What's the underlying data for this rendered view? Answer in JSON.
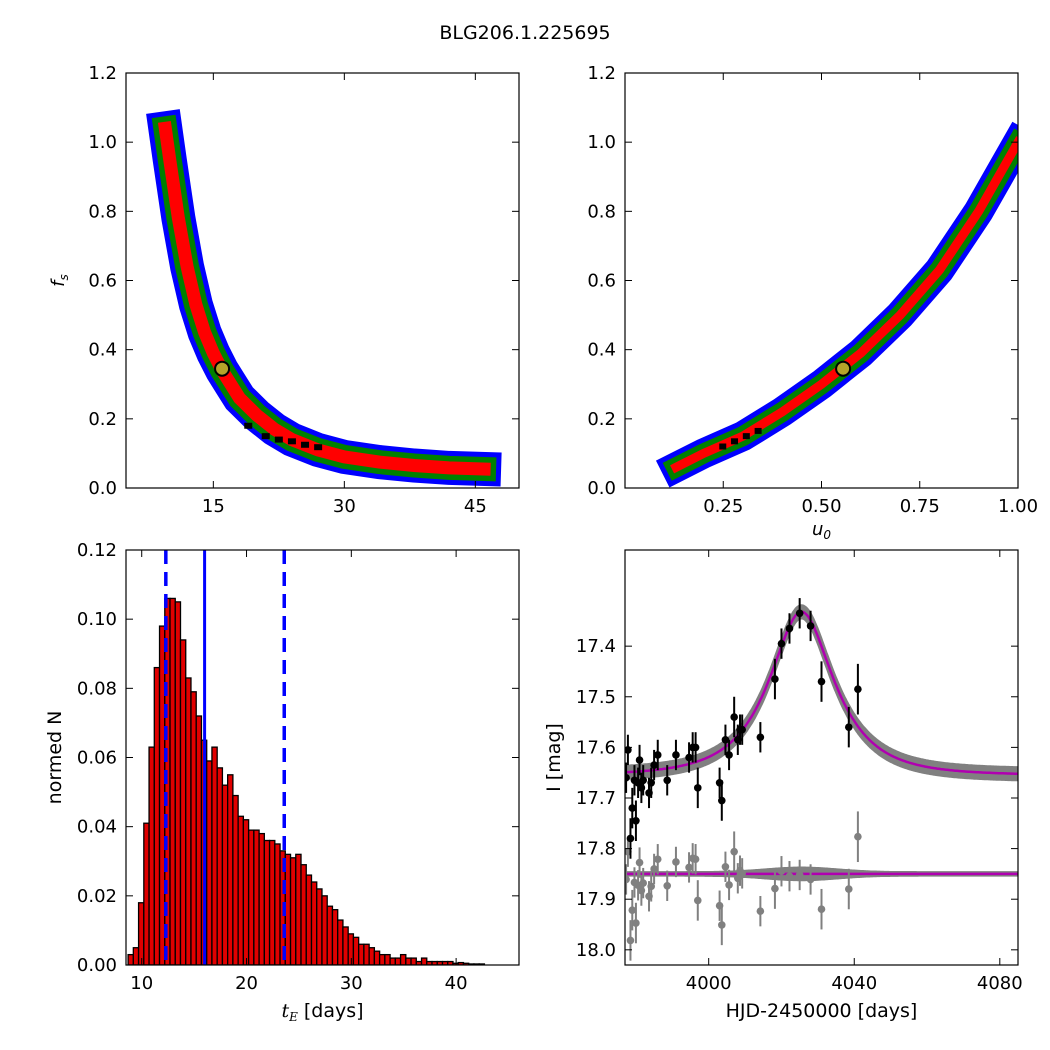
{
  "title": "BLG206.1.225695",
  "chart_data": [
    {
      "type": "heatmap",
      "id": "fs_vs_tE",
      "xlabel": "",
      "ylabel": "f_s",
      "xlim": [
        5,
        50
      ],
      "ylim": [
        0.0,
        1.2
      ],
      "xticks": [
        15,
        30,
        45
      ],
      "yticks": [
        0.0,
        0.2,
        0.4,
        0.6,
        0.8,
        1.0,
        1.2
      ],
      "xtick_labels": [
        "15",
        "30",
        "45"
      ],
      "ytick_labels": [
        "0.0",
        "0.2",
        "0.4",
        "0.6",
        "0.8",
        "1.0",
        "1.2"
      ],
      "regions": [
        {
          "level": "3sigma",
          "color": "#0000ff"
        },
        {
          "level": "2sigma",
          "color": "#008000"
        },
        {
          "level": "1sigma",
          "color": "#ff0000"
        },
        {
          "level": "best",
          "color": "#000000"
        }
      ],
      "ridge": [
        [
          9.5,
          1.04
        ],
        [
          10.0,
          0.95
        ],
        [
          11.0,
          0.78
        ],
        [
          12.0,
          0.64
        ],
        [
          13.0,
          0.53
        ],
        [
          14.0,
          0.45
        ],
        [
          15.0,
          0.39
        ],
        [
          16.0,
          0.34
        ],
        [
          17.0,
          0.3
        ],
        [
          18.0,
          0.26
        ],
        [
          20.0,
          0.21
        ],
        [
          22.0,
          0.17
        ],
        [
          24.0,
          0.14
        ],
        [
          27.0,
          0.11
        ],
        [
          30.0,
          0.09
        ],
        [
          34.0,
          0.075
        ],
        [
          38.0,
          0.065
        ],
        [
          42.0,
          0.058
        ],
        [
          46.0,
          0.055
        ]
      ],
      "best_fit": {
        "x": 16.0,
        "y": 0.345
      }
    },
    {
      "type": "heatmap",
      "id": "fs_vs_u0",
      "xlabel": "u_0",
      "ylabel": "",
      "xlim": [
        0.0,
        1.0
      ],
      "ylim": [
        0.0,
        1.2
      ],
      "xticks": [
        0.25,
        0.5,
        0.75,
        1.0
      ],
      "yticks": [
        0.0,
        0.2,
        0.4,
        0.6,
        0.8,
        1.0,
        1.2
      ],
      "xtick_labels": [
        "0.25",
        "0.50",
        "0.75",
        "1.00"
      ],
      "ytick_labels": [
        "0.0",
        "0.2",
        "0.4",
        "0.6",
        "0.8",
        "1.0",
        "1.2"
      ],
      "ridge": [
        [
          0.13,
          0.06
        ],
        [
          0.2,
          0.1
        ],
        [
          0.3,
          0.15
        ],
        [
          0.4,
          0.22
        ],
        [
          0.5,
          0.3
        ],
        [
          0.55,
          0.345
        ],
        [
          0.6,
          0.39
        ],
        [
          0.7,
          0.5
        ],
        [
          0.8,
          0.63
        ],
        [
          0.9,
          0.8
        ],
        [
          0.95,
          0.9
        ],
        [
          1.0,
          1.0
        ]
      ],
      "best_fit": {
        "x": 0.555,
        "y": 0.345
      }
    },
    {
      "type": "bar",
      "id": "tE_histogram",
      "xlabel": "t_E [days]",
      "ylabel": "normed N",
      "xlim": [
        8.5,
        46
      ],
      "ylim": [
        0.0,
        0.12
      ],
      "xticks": [
        10,
        20,
        30,
        40
      ],
      "yticks": [
        0.0,
        0.02,
        0.04,
        0.06,
        0.08,
        0.1,
        0.12
      ],
      "xtick_labels": [
        "10",
        "20",
        "30",
        "40"
      ],
      "ytick_labels": [
        "0.00",
        "0.02",
        "0.04",
        "0.06",
        "0.08",
        "0.10",
        "0.12"
      ],
      "bar_start": 8.7,
      "bar_width": 0.5,
      "values": [
        0.003,
        0.005,
        0.018,
        0.041,
        0.063,
        0.086,
        0.098,
        0.106,
        0.106,
        0.105,
        0.094,
        0.083,
        0.079,
        0.072,
        0.065,
        0.059,
        0.063,
        0.057,
        0.052,
        0.055,
        0.049,
        0.043,
        0.042,
        0.039,
        0.039,
        0.038,
        0.036,
        0.036,
        0.035,
        0.033,
        0.032,
        0.031,
        0.032,
        0.029,
        0.026,
        0.024,
        0.022,
        0.02,
        0.017,
        0.016,
        0.013,
        0.011,
        0.009,
        0.008,
        0.006,
        0.006,
        0.005,
        0.004,
        0.003,
        0.003,
        0.002,
        0.002,
        0.003,
        0.002,
        0.002,
        0.001,
        0.002,
        0.001,
        0.001,
        0.001,
        0.001,
        0.001,
        0.0005,
        0.0007,
        0.0005,
        0.0003,
        0.0003,
        0.0003
      ],
      "bar_color": "#e00000",
      "median": 16.0,
      "bounds": [
        12.3,
        23.6
      ],
      "line_color": "#0000ff"
    },
    {
      "type": "scatter",
      "id": "light_curve",
      "xlabel": "HJD-2450000 [days]",
      "ylabel": "I [mag]",
      "xlim": [
        3977,
        4085
      ],
      "ylim": [
        18.03,
        17.21
      ],
      "xticks": [
        4000,
        4040,
        4080
      ],
      "yticks": [
        17.4,
        17.5,
        17.6,
        17.7,
        17.8,
        17.9,
        18.0
      ],
      "xtick_labels": [
        "4000",
        "4040",
        "4080"
      ],
      "ytick_labels": [
        "17.4",
        "17.5",
        "17.6",
        "17.7",
        "17.8",
        "17.9",
        "18.0"
      ],
      "model": {
        "t0": 4025.5,
        "tE": 16.0,
        "u0": 0.555,
        "fs": 0.345,
        "baseline": 17.655,
        "resid_offset": 17.85
      },
      "model_color": "#b000b0",
      "band_color": "#808080",
      "points": [
        {
          "x": 3977.3,
          "y": 17.66,
          "e": 0.03
        },
        {
          "x": 3977.8,
          "y": 17.605,
          "e": 0.03
        },
        {
          "x": 3978.5,
          "y": 17.78,
          "e": 0.04
        },
        {
          "x": 3979.0,
          "y": 17.72,
          "e": 0.04
        },
        {
          "x": 3979.6,
          "y": 17.665,
          "e": 0.03
        },
        {
          "x": 3980.0,
          "y": 17.745,
          "e": 0.04
        },
        {
          "x": 3980.6,
          "y": 17.67,
          "e": 0.03
        },
        {
          "x": 3981.0,
          "y": 17.625,
          "e": 0.03
        },
        {
          "x": 3981.5,
          "y": 17.68,
          "e": 0.03
        },
        {
          "x": 3982.0,
          "y": 17.665,
          "e": 0.03
        },
        {
          "x": 3983.6,
          "y": 17.69,
          "e": 0.03
        },
        {
          "x": 3984.2,
          "y": 17.67,
          "e": 0.03
        },
        {
          "x": 3985.0,
          "y": 17.635,
          "e": 0.03
        },
        {
          "x": 3986.0,
          "y": 17.615,
          "e": 0.03
        },
        {
          "x": 3988.6,
          "y": 17.665,
          "e": 0.03
        },
        {
          "x": 3991.0,
          "y": 17.615,
          "e": 0.03
        },
        {
          "x": 3994.6,
          "y": 17.62,
          "e": 0.03
        },
        {
          "x": 3995.6,
          "y": 17.6,
          "e": 0.03
        },
        {
          "x": 3996.4,
          "y": 17.6,
          "e": 0.03
        },
        {
          "x": 3997.0,
          "y": 17.68,
          "e": 0.04
        },
        {
          "x": 4003.0,
          "y": 17.67,
          "e": 0.03
        },
        {
          "x": 4003.6,
          "y": 17.705,
          "e": 0.04
        },
        {
          "x": 4004.6,
          "y": 17.585,
          "e": 0.03
        },
        {
          "x": 4005.6,
          "y": 17.615,
          "e": 0.03
        },
        {
          "x": 4007.0,
          "y": 17.54,
          "e": 0.04
        },
        {
          "x": 4008.0,
          "y": 17.585,
          "e": 0.03
        },
        {
          "x": 4008.6,
          "y": 17.565,
          "e": 0.03
        },
        {
          "x": 4009.2,
          "y": 17.565,
          "e": 0.03
        },
        {
          "x": 4014.2,
          "y": 17.58,
          "e": 0.03
        },
        {
          "x": 4018.2,
          "y": 17.465,
          "e": 0.04
        },
        {
          "x": 4020.0,
          "y": 17.395,
          "e": 0.03
        },
        {
          "x": 4022.2,
          "y": 17.365,
          "e": 0.03
        },
        {
          "x": 4025.0,
          "y": 17.335,
          "e": 0.03
        },
        {
          "x": 4028.0,
          "y": 17.36,
          "e": 0.03
        },
        {
          "x": 4031.0,
          "y": 17.47,
          "e": 0.04
        },
        {
          "x": 4038.5,
          "y": 17.56,
          "e": 0.04
        },
        {
          "x": 4041.0,
          "y": 17.485,
          "e": 0.05
        }
      ]
    }
  ]
}
